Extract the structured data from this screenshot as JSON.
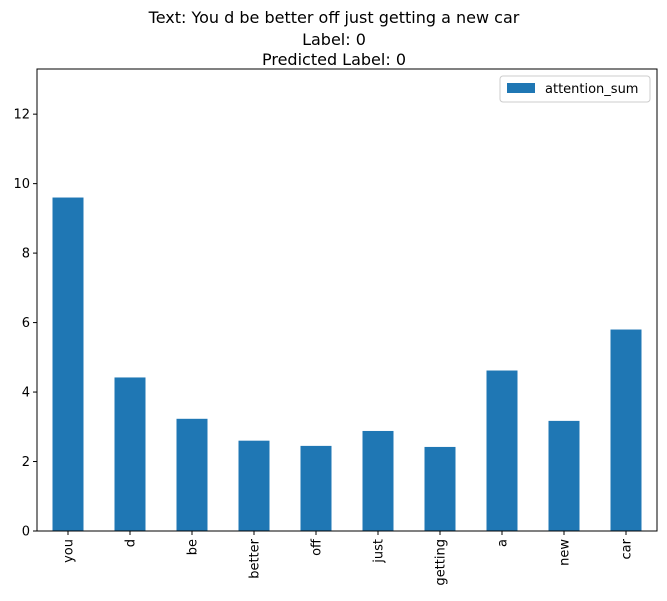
{
  "chart_data": {
    "type": "bar",
    "title_lines": [
      "Text: You d be better off just getting a new car",
      "Label: 0",
      "Predicted Label: 0"
    ],
    "categories": [
      "you",
      "d",
      "be",
      "better",
      "off",
      "just",
      "getting",
      "a",
      "new",
      "car"
    ],
    "series": [
      {
        "name": "attention_sum",
        "values": [
          9.6,
          4.42,
          3.23,
          2.6,
          2.45,
          2.88,
          2.42,
          4.62,
          3.17,
          5.8
        ]
      }
    ],
    "xlabel": "",
    "ylabel": "",
    "ylim": [
      0,
      13.3
    ],
    "yticks": [
      0,
      2,
      4,
      6,
      8,
      10,
      12
    ],
    "grid": false,
    "legend_position": "top-right",
    "bar_color": "#1f77b4"
  }
}
